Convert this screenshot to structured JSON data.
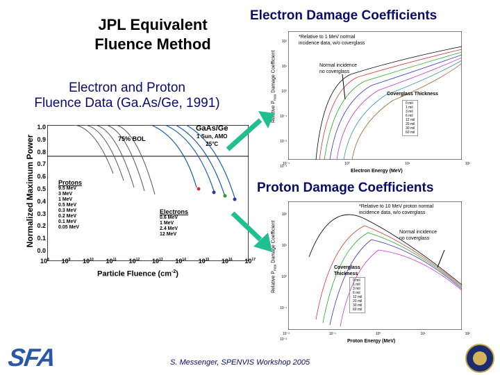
{
  "slide": {
    "title_line1": "JPL Equivalent",
    "title_line2": "Fluence Method",
    "subtitle_line1": "Electron and Proton",
    "subtitle_line2": "Fluence Data (Ga.As/Ge, 1991)",
    "electron_heading": "Electron Damage Coefficients",
    "proton_heading": "Proton Damage Coefficients",
    "footer": "S. Messenger, SPENVIS Workshop 2005",
    "logo_text": "SFA",
    "arrow_color": "#1fbf8f"
  },
  "left_chart": {
    "ylabel": "Normalized Maximum Power",
    "xlabel": "Particle Fluence (cm",
    "xlabel_exp": "-2",
    "xlabel_close": ")",
    "material": "GaAs/Ge",
    "conditions1": "1 Sun, AMO",
    "conditions2": "25°C",
    "bol": "75% BOL",
    "yticks": [
      "1.0",
      "0.9",
      "0.8",
      "0.7",
      "0.6",
      "0.5",
      "0.4",
      "0.3",
      "0.2",
      "0.1",
      "0.0"
    ],
    "xticks_base": [
      "10",
      "10",
      "10",
      "10",
      "10",
      "10",
      "10",
      "10",
      "10",
      "10"
    ],
    "xticks_exp": [
      "8",
      "9",
      "10",
      "11",
      "12",
      "13",
      "14",
      "15",
      "16",
      "17"
    ],
    "protons_title": "Protons",
    "protons": [
      "9.5 MeV",
      "3 MeV",
      "1 MeV",
      "0.5 MeV",
      "0.3 MeV",
      "0.2 MeV",
      "0.1 MeV",
      "0.05 MeV"
    ],
    "electrons_title": "Electrons",
    "electrons": [
      "0.6 MeV",
      "1 MeV",
      "2.4 MeV",
      "12 MeV"
    ]
  },
  "electron_chart": {
    "ylabel": "Relative P",
    "ylabel_sub": "max",
    "ylabel_end": " Damage Coefficient",
    "xlabel": "Electron Energy (MeV)",
    "note1": "*Relative to 1 MeV normal",
    "note2": "incidence data, w/o coverglass",
    "normal1": "Normal incidence",
    "normal2": "no coverglass",
    "cover_title": "Coverglass Thickness",
    "cover_items": [
      "0 mil",
      "1 mil",
      "3 mil",
      "6 mil",
      "12 mil",
      "20 mil",
      "30 mil",
      "60 mil"
    ],
    "yticks": [
      "10²",
      "10¹",
      "10⁰",
      "10⁻¹",
      "10⁻²",
      "10⁻³"
    ],
    "xticks": [
      "10⁻¹",
      "10⁰",
      "10¹",
      "10²"
    ]
  },
  "proton_chart": {
    "ylabel": "Relative P",
    "ylabel_sub": "max",
    "ylabel_end": " Damage Coefficient",
    "xlabel": "Proton Energy (MeV)",
    "note1": "*Relative to 10 MeV proton normal",
    "note2": "incidence data, w/o coverglass",
    "normal1": "Normal incidence",
    "normal2": "no coverglass",
    "cover_title1": "Coverglass",
    "cover_title2": "Thickness",
    "cover_items": [
      "0 mil",
      "1 mil",
      "3 mil",
      "6 mil",
      "12 mil",
      "20 mil",
      "30 mil",
      "60 mil"
    ],
    "yticks": [
      "10²",
      "10¹",
      "10⁰",
      "10⁻¹",
      "10⁻²"
    ],
    "xticks": [
      "10⁻²",
      "10⁻¹",
      "10⁰",
      "10¹",
      "10²"
    ]
  }
}
